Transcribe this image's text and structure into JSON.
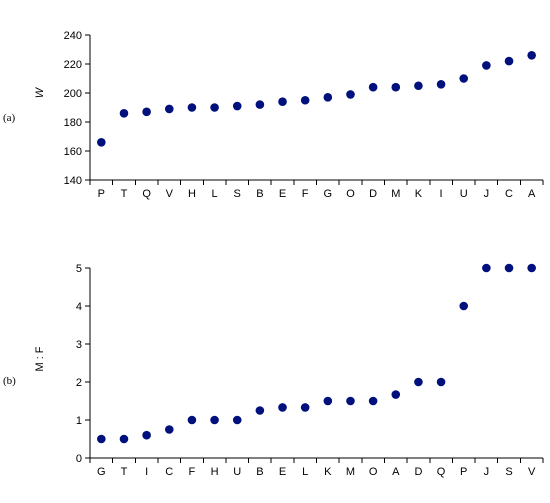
{
  "chart_data": [
    {
      "type": "scatter",
      "panel_label": "(a)",
      "ylabel": "W",
      "categories": [
        "P",
        "T",
        "Q",
        "V",
        "H",
        "L",
        "S",
        "B",
        "E",
        "F",
        "G",
        "O",
        "D",
        "M",
        "K",
        "I",
        "U",
        "J",
        "C",
        "A"
      ],
      "values": [
        166,
        186,
        187,
        189,
        190,
        190,
        191,
        192,
        194,
        195,
        197,
        199,
        204,
        204,
        205,
        206,
        210,
        219,
        222,
        226
      ],
      "ylim": [
        140,
        240
      ],
      "yticks": [
        140,
        160,
        180,
        200,
        220,
        240
      ],
      "ytick_labels": [
        "140",
        "160",
        "180",
        "200",
        "220",
        "240"
      ],
      "grid": false,
      "marker_color": "#00107c"
    },
    {
      "type": "scatter",
      "panel_label": "(b)",
      "ylabel": "M : F",
      "categories": [
        "G",
        "T",
        "I",
        "C",
        "F",
        "H",
        "U",
        "B",
        "E",
        "L",
        "K",
        "M",
        "O",
        "A",
        "D",
        "Q",
        "P",
        "J",
        "S",
        "V"
      ],
      "values": [
        0.5,
        0.5,
        0.6,
        0.75,
        1.0,
        1.0,
        1.0,
        1.25,
        1.33,
        1.33,
        1.5,
        1.5,
        1.5,
        1.67,
        2.0,
        2.0,
        4.0,
        5.0,
        5.0,
        5.0
      ],
      "ylim": [
        0,
        5
      ],
      "yticks": [
        0,
        1,
        2,
        3,
        4,
        5
      ],
      "ytick_labels": [
        "0",
        "1",
        "2",
        "3",
        "4",
        "5"
      ],
      "grid": false,
      "marker_color": "#00107c"
    }
  ]
}
